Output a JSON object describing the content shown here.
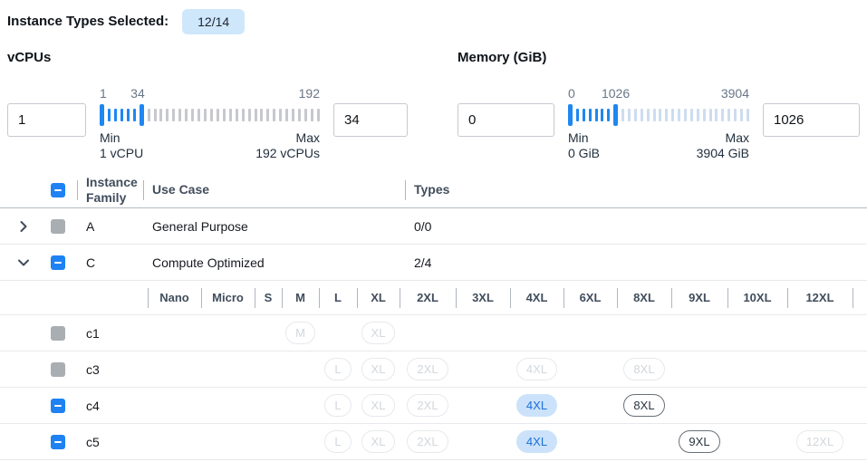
{
  "selected_summary": {
    "label": "Instance Types Selected:",
    "badge": "12/14"
  },
  "filters": {
    "vcpus": {
      "title": "vCPUs",
      "min_input": "1",
      "max_input": "34",
      "scale": {
        "min": "1",
        "current": "34",
        "max": "192"
      },
      "range": {
        "min": 1,
        "current": 34,
        "max": 192
      },
      "min_caption": "Min",
      "min_detail": "1 vCPU",
      "max_caption": "Max",
      "max_detail": "192 vCPUs"
    },
    "memory": {
      "title": "Memory (GiB)",
      "min_input": "0",
      "max_input": "1026",
      "scale": {
        "min": "0",
        "current": "1026",
        "max": "3904"
      },
      "range": {
        "min": 0,
        "current": 1026,
        "max": 3904
      },
      "min_caption": "Min",
      "min_detail": "0 GiB",
      "max_caption": "Max",
      "max_detail": "3904 GiB"
    }
  },
  "table": {
    "headers": {
      "instance_family": "Instance Family",
      "use_case": "Use Case",
      "types": "Types"
    },
    "header_checkbox": "indeterminate",
    "family_rows": [
      {
        "family": "A",
        "use_case": "General Purpose",
        "types": "0/0",
        "checkbox": "disabled",
        "expanded": false
      },
      {
        "family": "C",
        "use_case": "Compute Optimized",
        "types": "2/4",
        "checkbox": "indeterminate",
        "expanded": true
      }
    ],
    "size_columns": [
      "Nano",
      "Micro",
      "S",
      "M",
      "L",
      "XL",
      "2XL",
      "3XL",
      "4XL",
      "6XL",
      "8XL",
      "9XL",
      "10XL",
      "12XL"
    ],
    "instance_rows": [
      {
        "name": "c1",
        "checkbox": "disabled",
        "pills": {
          "M": "disabled",
          "XL": "disabled"
        }
      },
      {
        "name": "c3",
        "checkbox": "disabled",
        "pills": {
          "L": "disabled",
          "XL": "disabled",
          "2XL": "disabled",
          "4XL": "disabled",
          "8XL": "disabled"
        }
      },
      {
        "name": "c4",
        "checkbox": "indeterminate",
        "pills": {
          "L": "disabled",
          "XL": "disabled",
          "2XL": "disabled",
          "4XL": "selected",
          "8XL": "enabled"
        }
      },
      {
        "name": "c5",
        "checkbox": "indeterminate",
        "pills": {
          "L": "disabled",
          "XL": "disabled",
          "2XL": "disabled",
          "4XL": "selected",
          "9XL": "enabled",
          "12XL": "disabled"
        }
      }
    ]
  },
  "colors": {
    "accent_blue": "#1e82f2",
    "selected_pill_bg": "#cbe2fa",
    "selected_pill_text": "#1b6fd8",
    "badge_bg": "#cfe7fb",
    "disabled_checkbox": "#a9aeb2"
  }
}
